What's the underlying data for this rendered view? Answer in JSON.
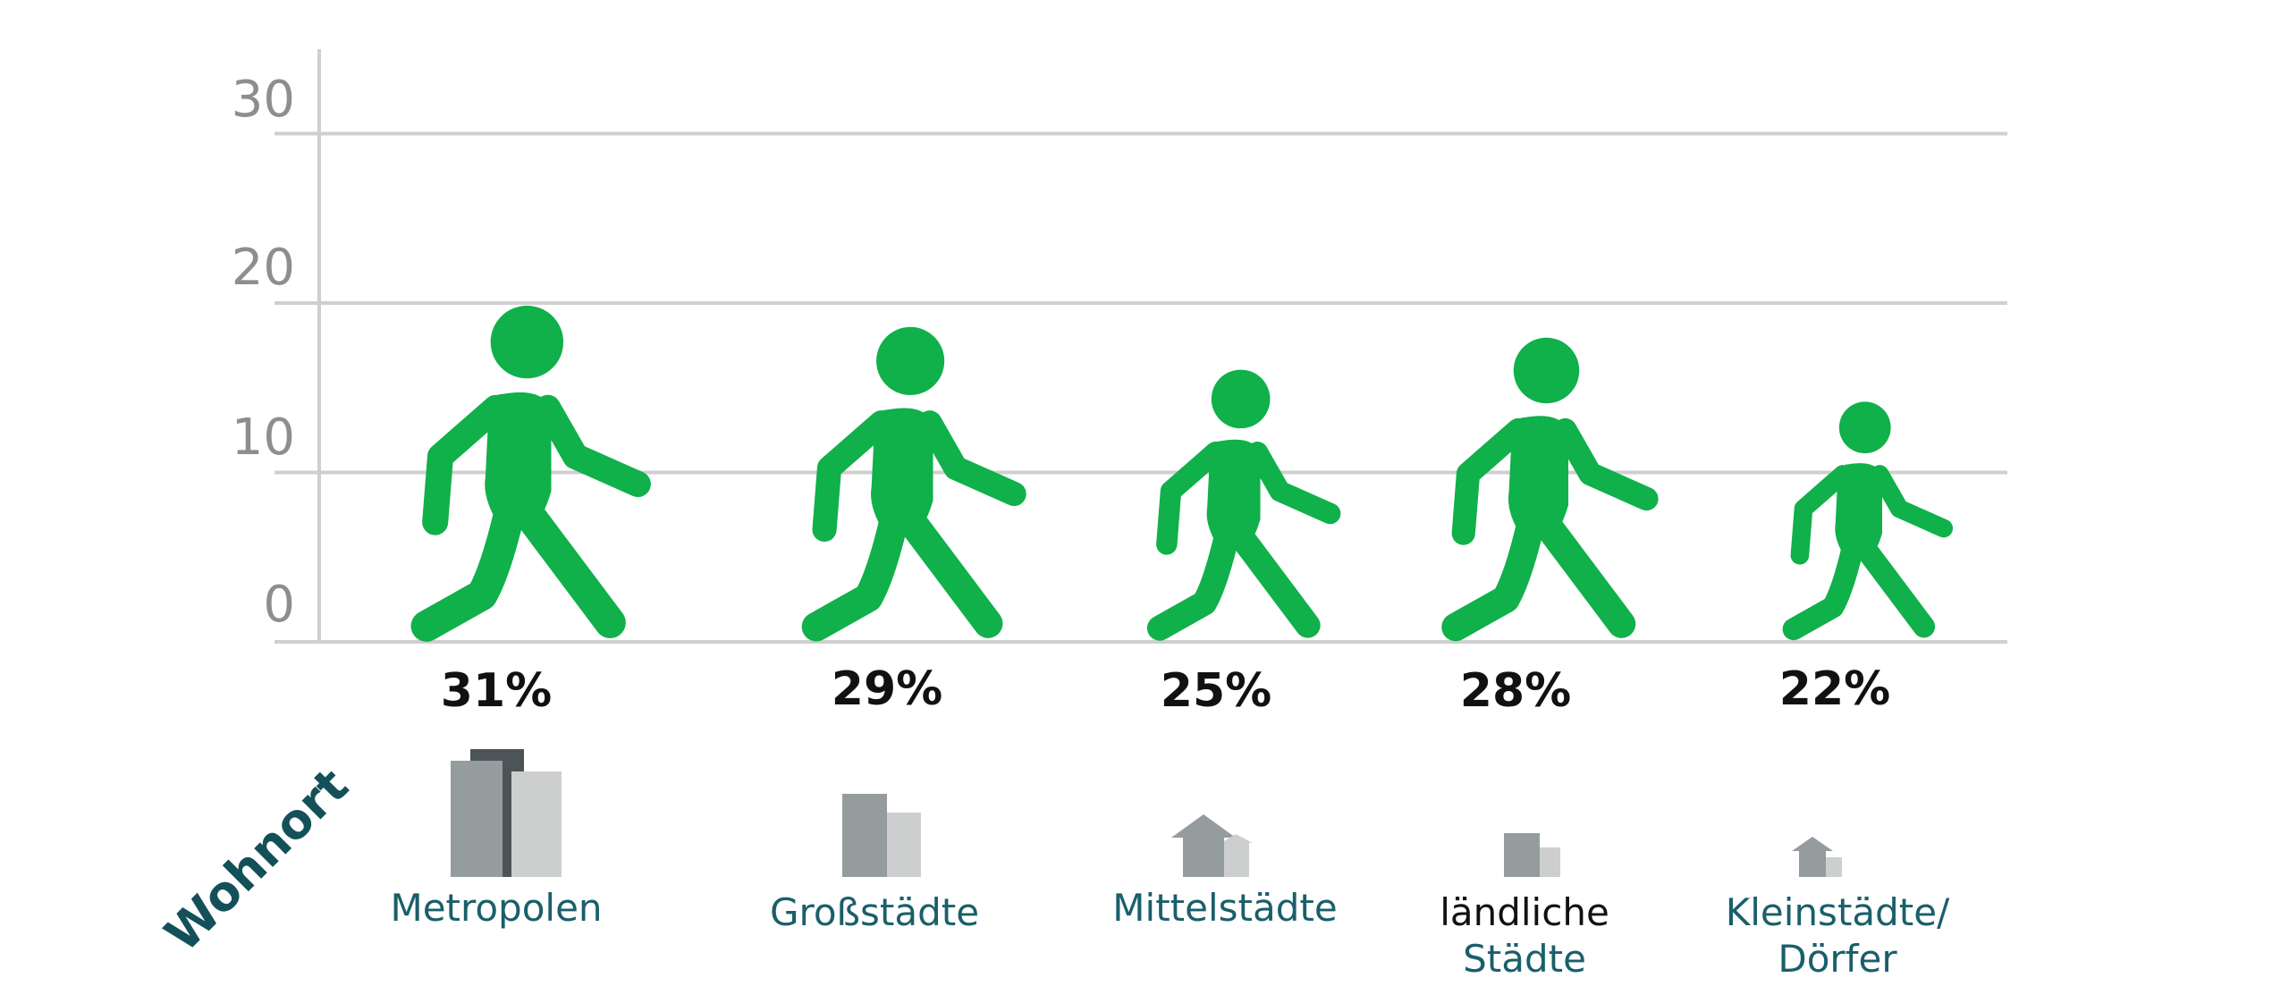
{
  "colors": {
    "figure": "#10b04a",
    "grid": "#cfcfcf",
    "tick_text": "#8e8e8e",
    "value_text": "#111111",
    "label_teal": "#1a5f6a",
    "label_black": "#111111",
    "building_dark": "#4d5457",
    "building_mid": "#959c9e",
    "building_light": "#cdcfcf"
  },
  "chart_data": {
    "type": "bar",
    "mark": "walking-person-icon",
    "side_label": "Wohnort",
    "ylim": [
      0,
      35
    ],
    "yticks": [
      0,
      10,
      20,
      30
    ],
    "grid": true,
    "categories": [
      "Metropolen",
      "Großstädte",
      "Mittelstädte",
      "ländliche Städte",
      "Kleinstädte/ Dörfer"
    ],
    "values": [
      31,
      29,
      25,
      28,
      22
    ],
    "value_labels": [
      "31%",
      "29%",
      "25%",
      "28%",
      "22%"
    ],
    "label_lines": [
      [
        "Metropolen"
      ],
      [
        "Großstädte"
      ],
      [
        "Mittelstädte"
      ],
      [
        "ländliche",
        "Städte"
      ],
      [
        "Kleinstädte/",
        "Dörfer"
      ]
    ],
    "label_line_colors": [
      [
        "teal"
      ],
      [
        "teal"
      ],
      [
        "teal"
      ],
      [
        "black",
        "teal"
      ],
      [
        "teal",
        "teal"
      ]
    ],
    "icons": [
      "high-rise-buildings-icon",
      "city-buildings-icon",
      "house-icon",
      "small-buildings-icon",
      "small-house-icon"
    ]
  }
}
